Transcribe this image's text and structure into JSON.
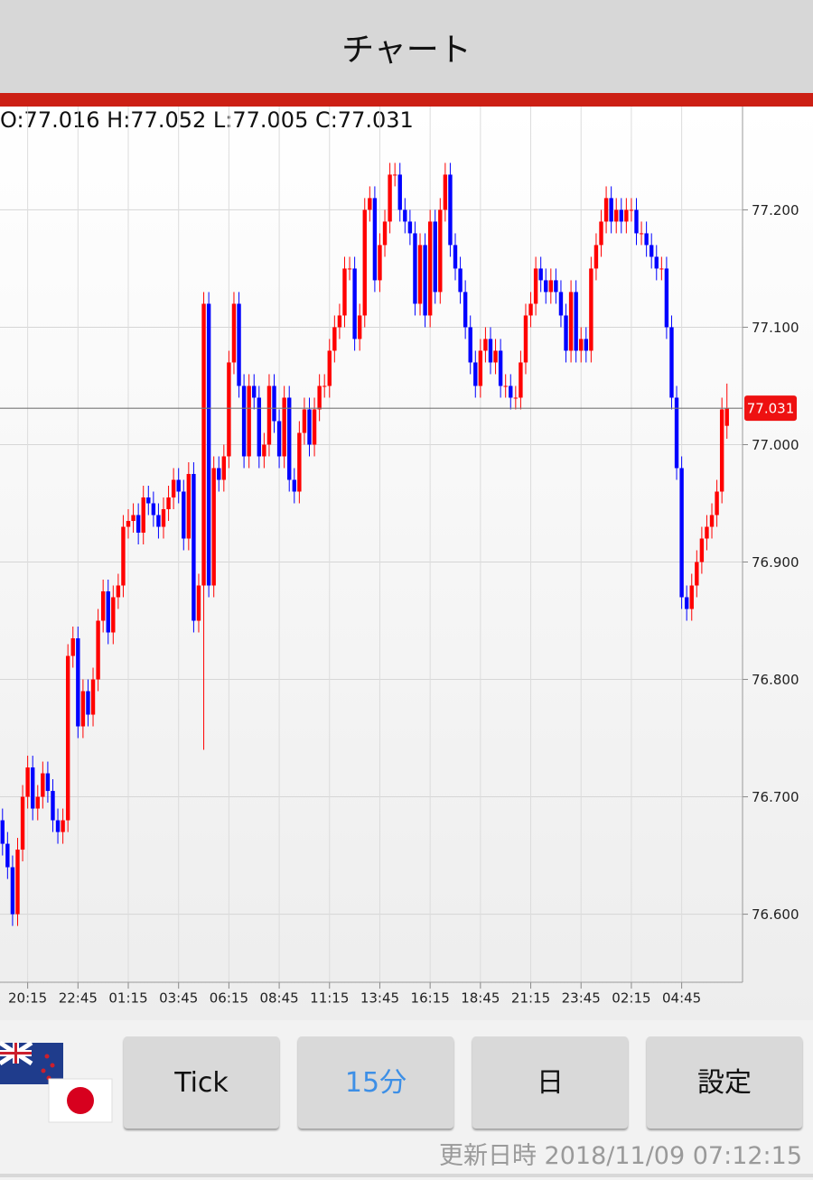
{
  "header": {
    "title": "チャート"
  },
  "chart_data": {
    "type": "candlestick",
    "ohlc_label": "O:77.016 H:77.052 L:77.005 C:77.031",
    "current_price": {
      "value": 77.031,
      "label": "77.031"
    },
    "up_color": "#ff0000",
    "down_color": "#0000ff",
    "grid": true,
    "xlim": [
      -0.5,
      147.1
    ],
    "ylim": [
      76.542,
      77.288
    ],
    "yticks": [
      {
        "value": 76.6,
        "label": "76.600"
      },
      {
        "value": 76.7,
        "label": "76.700"
      },
      {
        "value": 76.8,
        "label": "76.800"
      },
      {
        "value": 76.9,
        "label": "76.900"
      },
      {
        "value": 77.0,
        "label": "77.000"
      },
      {
        "value": 77.1,
        "label": "77.100"
      },
      {
        "value": 77.2,
        "label": "77.200"
      }
    ],
    "xticks": [
      {
        "value": 5,
        "label": "20:15"
      },
      {
        "value": 15,
        "label": "22:45"
      },
      {
        "value": 25,
        "label": "01:15"
      },
      {
        "value": 35,
        "label": "03:45"
      },
      {
        "value": 45,
        "label": "06:15"
      },
      {
        "value": 55,
        "label": "08:45"
      },
      {
        "value": 65,
        "label": "11:15"
      },
      {
        "value": 75,
        "label": "13:45"
      },
      {
        "value": 85,
        "label": "16:15"
      },
      {
        "value": 95,
        "label": "18:45"
      },
      {
        "value": 105,
        "label": "21:15"
      },
      {
        "value": 115,
        "label": "23:45"
      },
      {
        "value": 125,
        "label": "02:15"
      },
      {
        "value": 135,
        "label": "04:45"
      }
    ],
    "open": [
      76.68,
      76.66,
      76.64,
      76.6,
      76.655,
      76.7,
      76.725,
      76.69,
      76.7,
      76.72,
      76.705,
      76.68,
      76.67,
      76.68,
      76.82,
      76.835,
      76.76,
      76.79,
      76.77,
      76.8,
      76.85,
      76.875,
      76.84,
      76.87,
      76.88,
      76.93,
      76.935,
      76.94,
      76.925,
      76.955,
      76.95,
      76.94,
      76.93,
      76.945,
      76.955,
      76.97,
      76.96,
      76.92,
      76.975,
      76.85,
      76.88,
      77.12,
      76.88,
      76.98,
      76.97,
      76.99,
      77.07,
      77.12,
      77.05,
      76.99,
      77.05,
      77.04,
      76.99,
      77.0,
      77.05,
      77.02,
      76.99,
      77.04,
      76.97,
      76.96,
      77.01,
      77.03,
      77.0,
      77.03,
      77.05,
      77.05,
      77.08,
      77.1,
      77.11,
      77.15,
      77.15,
      77.09,
      77.11,
      77.2,
      77.21,
      77.14,
      77.17,
      77.19,
      77.23,
      77.23,
      77.2,
      77.19,
      77.18,
      77.12,
      77.17,
      77.11,
      77.19,
      77.13,
      77.2,
      77.23,
      77.17,
      77.15,
      77.13,
      77.1,
      77.07,
      77.05,
      77.08,
      77.09,
      77.07,
      77.08,
      77.05,
      77.05,
      77.04,
      77.04,
      77.07,
      77.11,
      77.12,
      77.15,
      77.14,
      77.13,
      77.14,
      77.13,
      77.11,
      77.08,
      77.13,
      77.08,
      77.09,
      77.08,
      77.15,
      77.17,
      77.19,
      77.21,
      77.19,
      77.2,
      77.19,
      77.2,
      77.2,
      77.18,
      77.18,
      77.17,
      77.16,
      77.15,
      77.15,
      77.1,
      77.04,
      76.98,
      76.87,
      76.86,
      76.88,
      76.9,
      76.92,
      76.93,
      76.94,
      76.96,
      77.016
    ],
    "high": [
      76.69,
      76.67,
      76.65,
      76.665,
      76.71,
      76.735,
      76.735,
      76.71,
      76.73,
      76.73,
      76.715,
      76.69,
      76.69,
      76.83,
      76.845,
      76.845,
      76.8,
      76.8,
      76.81,
      76.86,
      76.885,
      76.885,
      76.88,
      76.89,
      76.94,
      76.945,
      76.95,
      76.95,
      76.965,
      76.965,
      76.96,
      76.95,
      76.955,
      76.965,
      76.98,
      76.98,
      76.97,
      76.985,
      76.985,
      76.89,
      77.13,
      77.13,
      76.99,
      76.99,
      77.0,
      77.08,
      77.13,
      77.13,
      77.06,
      77.06,
      77.06,
      77.05,
      77.01,
      77.06,
      77.06,
      77.03,
      77.05,
      77.05,
      76.98,
      77.02,
      77.04,
      77.04,
      77.04,
      77.06,
      77.06,
      77.09,
      77.11,
      77.12,
      77.16,
      77.16,
      77.16,
      77.12,
      77.21,
      77.22,
      77.22,
      77.18,
      77.2,
      77.24,
      77.24,
      77.24,
      77.21,
      77.2,
      77.19,
      77.18,
      77.18,
      77.2,
      77.2,
      77.21,
      77.24,
      77.24,
      77.18,
      77.16,
      77.14,
      77.11,
      77.08,
      77.09,
      77.1,
      77.1,
      77.09,
      77.09,
      77.06,
      77.06,
      77.05,
      77.08,
      77.12,
      77.13,
      77.16,
      77.16,
      77.15,
      77.15,
      77.15,
      77.14,
      77.12,
      77.14,
      77.14,
      77.1,
      77.1,
      77.16,
      77.18,
      77.2,
      77.22,
      77.22,
      77.21,
      77.21,
      77.21,
      77.21,
      77.21,
      77.19,
      77.19,
      77.18,
      77.17,
      77.16,
      77.16,
      77.11,
      77.05,
      76.99,
      76.88,
      76.89,
      76.91,
      76.93,
      76.94,
      76.95,
      76.97,
      77.04,
      77.052
    ],
    "low": [
      76.65,
      76.63,
      76.59,
      76.59,
      76.645,
      76.69,
      76.68,
      76.68,
      76.69,
      76.695,
      76.67,
      76.66,
      76.66,
      76.67,
      76.81,
      76.75,
      76.75,
      76.76,
      76.76,
      76.79,
      76.84,
      76.83,
      76.83,
      76.86,
      76.87,
      76.92,
      76.925,
      76.915,
      76.915,
      76.94,
      76.93,
      76.92,
      76.92,
      76.935,
      76.945,
      76.95,
      76.91,
      76.91,
      76.84,
      76.84,
      76.74,
      76.87,
      76.87,
      76.96,
      76.96,
      76.98,
      77.06,
      77.04,
      76.98,
      76.98,
      77.03,
      76.98,
      76.98,
      76.99,
      77.01,
      76.98,
      76.98,
      76.96,
      76.95,
      76.95,
      77.0,
      76.99,
      76.99,
      77.02,
      77.04,
      77.04,
      77.07,
      77.09,
      77.1,
      77.14,
      77.08,
      77.08,
      77.1,
      77.19,
      77.13,
      77.13,
      77.16,
      77.18,
      77.22,
      77.19,
      77.18,
      77.17,
      77.11,
      77.11,
      77.1,
      77.1,
      77.12,
      77.12,
      77.19,
      77.16,
      77.14,
      77.12,
      77.09,
      77.06,
      77.04,
      77.04,
      77.07,
      77.06,
      77.06,
      77.04,
      77.04,
      77.03,
      77.03,
      77.03,
      77.06,
      77.1,
      77.11,
      77.13,
      77.12,
      77.12,
      77.12,
      77.1,
      77.07,
      77.07,
      77.07,
      77.07,
      77.07,
      77.07,
      77.14,
      77.16,
      77.18,
      77.18,
      77.18,
      77.18,
      77.18,
      77.19,
      77.17,
      77.17,
      77.16,
      77.15,
      77.14,
      77.14,
      77.09,
      77.03,
      76.97,
      76.86,
      76.85,
      76.85,
      76.87,
      76.89,
      76.91,
      76.92,
      76.93,
      76.95,
      77.005
    ],
    "close": [
      76.66,
      76.64,
      76.6,
      76.655,
      76.7,
      76.725,
      76.69,
      76.7,
      76.72,
      76.705,
      76.68,
      76.67,
      76.68,
      76.82,
      76.835,
      76.76,
      76.79,
      76.77,
      76.8,
      76.85,
      76.875,
      76.84,
      76.87,
      76.88,
      76.93,
      76.935,
      76.94,
      76.925,
      76.955,
      76.95,
      76.94,
      76.93,
      76.945,
      76.955,
      76.97,
      76.96,
      76.92,
      76.975,
      76.85,
      76.88,
      77.12,
      76.88,
      76.98,
      76.97,
      76.99,
      77.07,
      77.12,
      77.05,
      76.99,
      77.05,
      77.04,
      76.99,
      77.0,
      77.05,
      77.02,
      76.99,
      77.04,
      76.97,
      76.96,
      77.01,
      77.03,
      77.0,
      77.03,
      77.05,
      77.05,
      77.08,
      77.1,
      77.11,
      77.15,
      77.15,
      77.09,
      77.11,
      77.2,
      77.21,
      77.14,
      77.17,
      77.19,
      77.23,
      77.23,
      77.2,
      77.19,
      77.18,
      77.12,
      77.17,
      77.11,
      77.19,
      77.13,
      77.2,
      77.23,
      77.17,
      77.15,
      77.13,
      77.1,
      77.07,
      77.05,
      77.08,
      77.09,
      77.07,
      77.08,
      77.05,
      77.05,
      77.04,
      77.04,
      77.07,
      77.11,
      77.12,
      77.15,
      77.14,
      77.13,
      77.14,
      77.13,
      77.11,
      77.08,
      77.13,
      77.08,
      77.09,
      77.08,
      77.15,
      77.17,
      77.19,
      77.21,
      77.19,
      77.2,
      77.19,
      77.2,
      77.2,
      77.18,
      77.18,
      77.17,
      77.16,
      77.15,
      77.15,
      77.1,
      77.04,
      76.98,
      76.87,
      76.86,
      76.88,
      76.9,
      76.92,
      76.93,
      76.94,
      76.96,
      77.03,
      77.031
    ]
  },
  "buttons": [
    "Tick",
    "15分",
    "日",
    "設定"
  ],
  "active_button": 1,
  "footer": {
    "updated": "更新日時 2018/11/09 07:12:15"
  }
}
